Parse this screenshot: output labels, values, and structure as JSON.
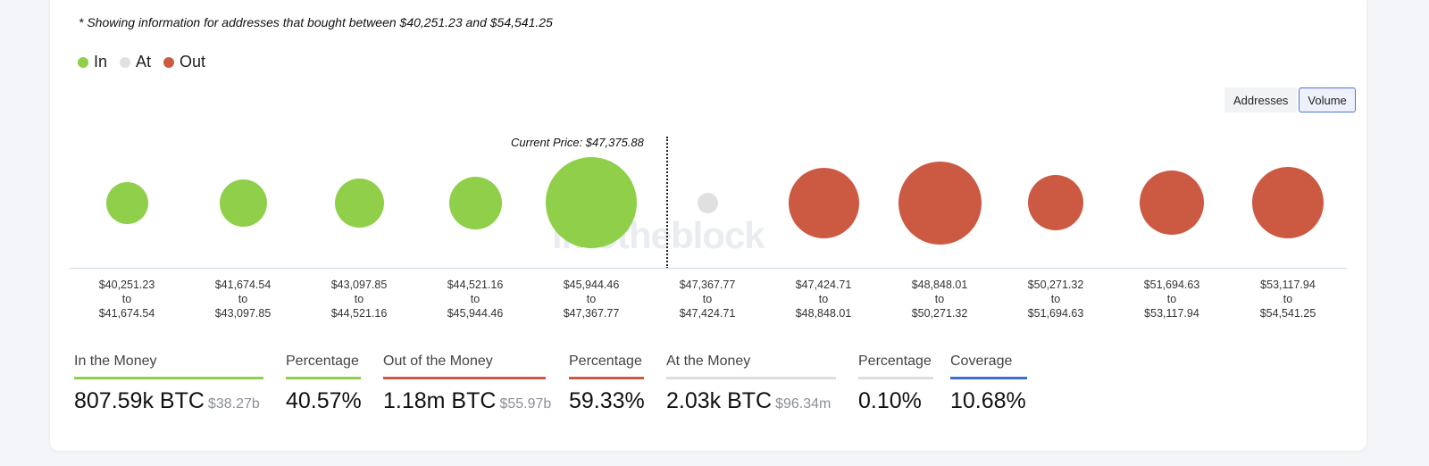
{
  "note": "* Showing information for addresses that bought between $40,251.23 and $54,541.25",
  "legend": [
    {
      "label": "In",
      "color": "#8fcf4a"
    },
    {
      "label": "At",
      "color": "#e0e0e0"
    },
    {
      "label": "Out",
      "color": "#cc5a43"
    }
  ],
  "toggle": {
    "addresses_label": "Addresses",
    "volume_label": "Volume"
  },
  "current_price_label": "Current Price: $47,375.88",
  "watermark": "intotheblock",
  "ranges": [
    {
      "from": "$40,251.23",
      "to_word": "to",
      "to": "$41,674.54",
      "status": "in"
    },
    {
      "from": "$41,674.54",
      "to_word": "to",
      "to": "$43,097.85",
      "status": "in"
    },
    {
      "from": "$43,097.85",
      "to_word": "to",
      "to": "$44,521.16",
      "status": "in"
    },
    {
      "from": "$44,521.16",
      "to_word": "to",
      "to": "$45,944.46",
      "status": "in"
    },
    {
      "from": "$45,944.46",
      "to_word": "to",
      "to": "$47,367.77",
      "status": "in"
    },
    {
      "from": "$47,367.77",
      "to_word": "to",
      "to": "$47,424.71",
      "status": "at"
    },
    {
      "from": "$47,424.71",
      "to_word": "to",
      "to": "$48,848.01",
      "status": "out"
    },
    {
      "from": "$48,848.01",
      "to_word": "to",
      "to": "$50,271.32",
      "status": "out"
    },
    {
      "from": "$50,271.32",
      "to_word": "to",
      "to": "$51,694.63",
      "status": "out"
    },
    {
      "from": "$51,694.63",
      "to_word": "to",
      "to": "$53,117.94",
      "status": "out"
    },
    {
      "from": "$53,117.94",
      "to_word": "to",
      "to": "$54,541.25",
      "status": "out"
    }
  ],
  "stats": {
    "in_money": {
      "title": "In the Money",
      "value": "807.59k BTC",
      "sub": "$38.27b",
      "color": "#8fcf4a"
    },
    "in_pct": {
      "title": "Percentage",
      "value": "40.57%",
      "color": "#8fcf4a"
    },
    "out_money": {
      "title": "Out of the Money",
      "value": "1.18m BTC",
      "sub": "$55.97b",
      "color": "#cc5a43"
    },
    "out_pct": {
      "title": "Percentage",
      "value": "59.33%",
      "color": "#cc5a43"
    },
    "at_money": {
      "title": "At the Money",
      "value": "2.03k BTC",
      "sub": "$96.34m",
      "color": "#dddddd"
    },
    "at_pct": {
      "title": "Percentage",
      "value": "0.10%",
      "color": "#dddddd"
    },
    "coverage": {
      "title": "Coverage",
      "value": "10.68%",
      "color": "#3c6fd6"
    }
  },
  "chart_data": {
    "type": "scatter",
    "encoding": "bubble area represents relative volume per price range (estimated)",
    "categories": [
      "$40,251.23 to $41,674.54",
      "$41,674.54 to $43,097.85",
      "$43,097.85 to $44,521.16",
      "$44,521.16 to $45,944.46",
      "$45,944.46 to $47,367.77",
      "$47,367.77 to $47,424.71",
      "$47,424.71 to $48,848.01",
      "$48,848.01 to $50,271.32",
      "$50,271.32 to $51,694.63",
      "$51,694.63 to $53,117.94",
      "$53,117.94 to $54,541.25"
    ],
    "relative_size": [
      0.46,
      0.52,
      0.54,
      0.58,
      1.0,
      0.23,
      0.77,
      0.91,
      0.61,
      0.71,
      0.78
    ],
    "status": [
      "in",
      "in",
      "in",
      "in",
      "in",
      "at",
      "out",
      "out",
      "out",
      "out",
      "out"
    ]
  }
}
